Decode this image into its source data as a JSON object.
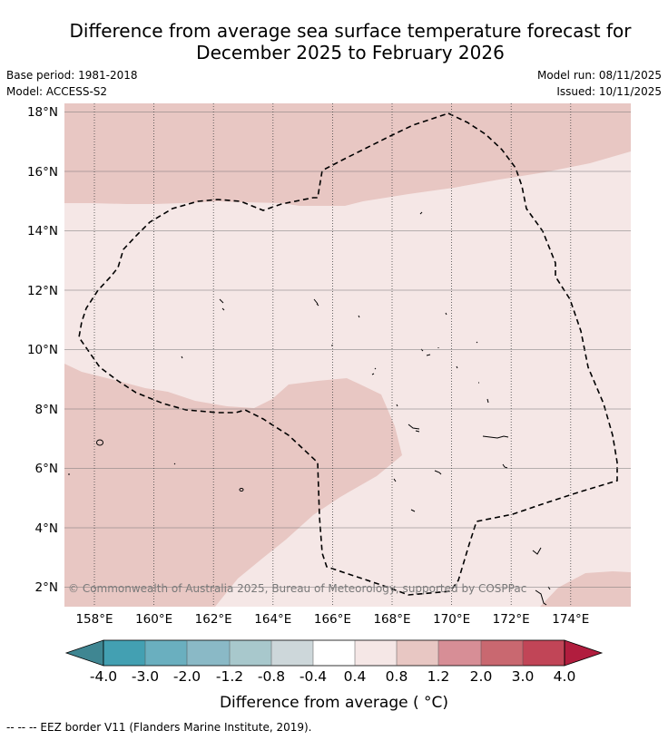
{
  "title": {
    "line1": "Difference from average sea surface temperature forecast for",
    "line2": "December 2025 to February 2026"
  },
  "meta": {
    "base_period": "Base period: 1981-2018",
    "model": "Model: ACCESS-S2",
    "model_run": "Model run: 08/11/2025",
    "issued": "Issued: 10/11/2025"
  },
  "map": {
    "lat_labels": [
      "18°N",
      "16°N",
      "14°N",
      "12°N",
      "10°N",
      "8°N",
      "6°N",
      "4°N",
      "2°N"
    ],
    "lon_labels": [
      "158°E",
      "160°E",
      "162°E",
      "164°E",
      "166°E",
      "168°E",
      "170°E",
      "172°E",
      "174°E"
    ],
    "copyright": "© Commonwealth of Australia 2025, Bureau of Meteorology, supported by COSPPac",
    "region_colors": {
      "warm_0_8_to_1_2": "#e8c7c3",
      "warm_0_4_to_0_8": "#f5e7e6"
    }
  },
  "colorbar": {
    "tick_labels": [
      "-4.0",
      "-3.0",
      "-2.0",
      "-1.2",
      "-0.8",
      "-0.4",
      "0.4",
      "0.8",
      "1.2",
      "2.0",
      "3.0",
      "4.0"
    ],
    "colors": [
      "#43a0b2",
      "#6aafbf",
      "#8ab9c6",
      "#a8c8cc",
      "#cdd7da",
      "#ffffff",
      "#f5e7e6",
      "#e8c7c3",
      "#d78e96",
      "#c96870",
      "#c14557"
    ],
    "under_color": "#3f8692",
    "over_color": "#b11d3e",
    "label": "Difference from average ( °C)"
  },
  "footnote": "--  --  -- EEZ border V11 (Flanders Marine Institute, 2019)."
}
